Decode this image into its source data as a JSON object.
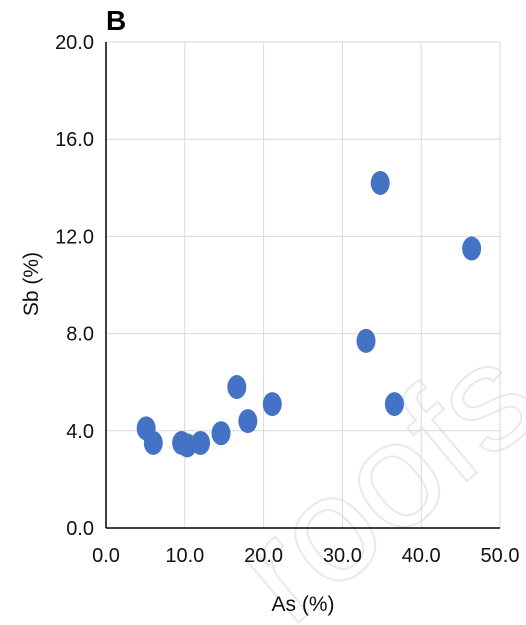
{
  "panel_label": "B",
  "watermark_text": "roofs",
  "colors": {
    "point": "#4472c4",
    "grid": "#d9d9d9",
    "axis": "#000000"
  },
  "chart_data": {
    "type": "scatter",
    "title": "",
    "xlabel": "As (%)",
    "ylabel": "Sb (%)",
    "xlim": [
      0,
      50
    ],
    "ylim": [
      0,
      20
    ],
    "x_ticks": [
      "0.0",
      "10.0",
      "20.0",
      "30.0",
      "40.0",
      "50.0"
    ],
    "y_ticks": [
      "0.0",
      "4.0",
      "8.0",
      "12.0",
      "16.0",
      "20.0"
    ],
    "grid": true,
    "x": [
      5.1,
      6.0,
      9.6,
      10.3,
      12.0,
      14.6,
      16.6,
      18.0,
      21.1,
      33.0,
      34.8,
      36.6,
      46.4
    ],
    "y": [
      4.1,
      3.5,
      3.5,
      3.4,
      3.5,
      3.9,
      5.8,
      4.4,
      5.1,
      7.7,
      14.2,
      5.1,
      11.5
    ]
  }
}
